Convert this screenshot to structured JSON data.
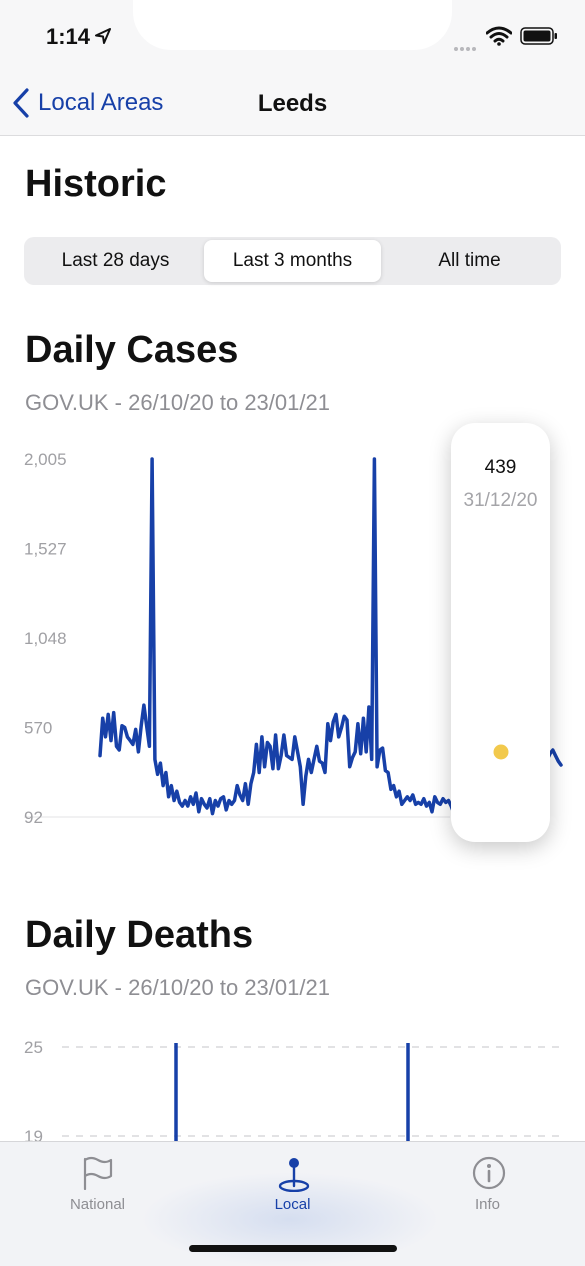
{
  "status_bar": {
    "time": "1:14"
  },
  "nav": {
    "back_label": "Local Areas",
    "title": "Leeds"
  },
  "historic": {
    "title": "Historic",
    "ranges": [
      "Last 28 days",
      "Last 3 months",
      "All time"
    ],
    "selected_range": "Last 3 months"
  },
  "cases": {
    "title": "Daily Cases",
    "subtitle": "GOV.UK - 26/10/20 to 23/01/21",
    "tooltip": {
      "value": "439",
      "date": "31/12/20"
    }
  },
  "deaths": {
    "title": "Daily Deaths",
    "subtitle": "GOV.UK - 26/10/20 to 23/01/21"
  },
  "tabs": [
    {
      "label": "National",
      "icon": "flag-icon"
    },
    {
      "label": "Local",
      "icon": "location-pin-icon"
    },
    {
      "label": "Info",
      "icon": "info-icon"
    }
  ],
  "selected_tab": "Local",
  "colors": {
    "accent": "#1740a8",
    "series": "#1740a8",
    "highlight": "#f2c94c"
  },
  "chart_data": [
    {
      "type": "line",
      "y_ticks": [
        "2,005",
        "1,527",
        "1,048",
        "570",
        "92"
      ],
      "ylim": [
        92,
        2005
      ],
      "highlight": {
        "x": "31/12/20",
        "y": 439
      },
      "series": [
        {
          "values": [
            420,
            620,
            520,
            640,
            500,
            650,
            470,
            450,
            580,
            570,
            520,
            500,
            480,
            560,
            440,
            580,
            690,
            580,
            470,
            2005,
            400,
            320,
            380,
            260,
            330,
            200,
            260,
            180,
            230,
            170,
            150,
            180,
            150,
            200,
            160,
            220,
            120,
            190,
            160,
            140,
            190,
            110,
            180,
            150,
            190,
            200,
            130,
            180,
            160,
            180,
            260,
            210,
            180,
            270,
            160,
            270,
            330,
            480,
            330,
            520,
            360,
            490,
            470,
            350,
            530,
            350,
            420,
            530,
            420,
            410,
            400,
            520,
            440,
            360,
            160,
            310,
            400,
            330,
            400,
            470,
            390,
            380,
            330,
            590,
            500,
            600,
            640,
            520,
            570,
            630,
            610,
            360,
            410,
            440,
            590,
            430,
            620,
            440,
            680,
            400,
            2005,
            360,
            450,
            460,
            340,
            330,
            240,
            260,
            200,
            230,
            160,
            180,
            200,
            180,
            210,
            160,
            170,
            160,
            190,
            150,
            170,
            120,
            200,
            170,
            160,
            190,
            170,
            180,
            150,
            110,
            180,
            120,
            160,
            170,
            180,
            200,
            150,
            140,
            220,
            180,
            220,
            290,
            260,
            220,
            230,
            170,
            260,
            290,
            380,
            320,
            460,
            300,
            420,
            310,
            330,
            430,
            480,
            330,
            470,
            380,
            460,
            370,
            130,
            400,
            430,
            450,
            420,
            390,
            370
          ]
        }
      ]
    },
    {
      "type": "line",
      "y_ticks": [
        "25",
        "19"
      ]
    }
  ]
}
